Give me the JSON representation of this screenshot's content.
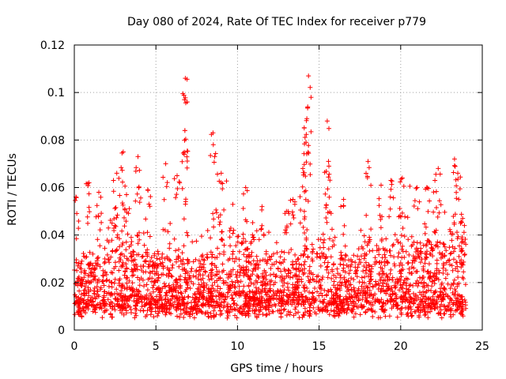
{
  "chart_data": {
    "type": "scatter",
    "title": "Day 080 of 2024, Rate Of TEC Index for receiver p779",
    "xlabel": "GPS time / hours",
    "ylabel": "ROTI / TECUs",
    "xlim": [
      0,
      25
    ],
    "ylim": [
      0,
      0.12
    ],
    "x_ticks": [
      0,
      5,
      10,
      15,
      20,
      25
    ],
    "y_ticks": [
      0,
      0.02,
      0.04,
      0.06,
      0.08,
      0.1,
      0.12
    ],
    "x_tick_labels": [
      "0",
      "5",
      "10",
      "15",
      "20",
      "25"
    ],
    "y_tick_labels": [
      "0",
      "0.02",
      "0.04",
      "0.06",
      "0.08",
      "0.1",
      "0.12"
    ],
    "grid": true,
    "marker": "+",
    "color": "#ff0000",
    "series": [
      {
        "name": "ROTI",
        "hour_range": [
          0,
          24
        ],
        "baseline": 0.015,
        "peaks": [
          {
            "x": 0.1,
            "y": 0.056
          },
          {
            "x": 0.9,
            "y": 0.062
          },
          {
            "x": 1.5,
            "y": 0.058
          },
          {
            "x": 2.4,
            "y": 0.063
          },
          {
            "x": 2.6,
            "y": 0.066
          },
          {
            "x": 3.0,
            "y": 0.075
          },
          {
            "x": 3.2,
            "y": 0.057
          },
          {
            "x": 3.9,
            "y": 0.073
          },
          {
            "x": 4.5,
            "y": 0.059
          },
          {
            "x": 5.6,
            "y": 0.07
          },
          {
            "x": 6.3,
            "y": 0.065
          },
          {
            "x": 6.8,
            "y": 0.106
          },
          {
            "x": 6.75,
            "y": 0.097
          },
          {
            "x": 6.78,
            "y": 0.084
          },
          {
            "x": 8.5,
            "y": 0.083
          },
          {
            "x": 8.6,
            "y": 0.073
          },
          {
            "x": 9.0,
            "y": 0.066
          },
          {
            "x": 10.5,
            "y": 0.06
          },
          {
            "x": 11.5,
            "y": 0.052
          },
          {
            "x": 13.0,
            "y": 0.05
          },
          {
            "x": 13.4,
            "y": 0.055
          },
          {
            "x": 14.0,
            "y": 0.068
          },
          {
            "x": 14.2,
            "y": 0.079
          },
          {
            "x": 14.35,
            "y": 0.107
          },
          {
            "x": 14.3,
            "y": 0.094
          },
          {
            "x": 14.25,
            "y": 0.089
          },
          {
            "x": 15.5,
            "y": 0.088
          },
          {
            "x": 15.6,
            "y": 0.069
          },
          {
            "x": 16.5,
            "y": 0.055
          },
          {
            "x": 18.0,
            "y": 0.071
          },
          {
            "x": 18.8,
            "y": 0.061
          },
          {
            "x": 19.4,
            "y": 0.063
          },
          {
            "x": 20.1,
            "y": 0.064
          },
          {
            "x": 21.0,
            "y": 0.06
          },
          {
            "x": 21.6,
            "y": 0.06
          },
          {
            "x": 22.1,
            "y": 0.063
          },
          {
            "x": 22.3,
            "y": 0.068
          },
          {
            "x": 23.3,
            "y": 0.072
          },
          {
            "x": 23.5,
            "y": 0.066
          },
          {
            "x": 23.8,
            "y": 0.047
          }
        ]
      }
    ]
  }
}
